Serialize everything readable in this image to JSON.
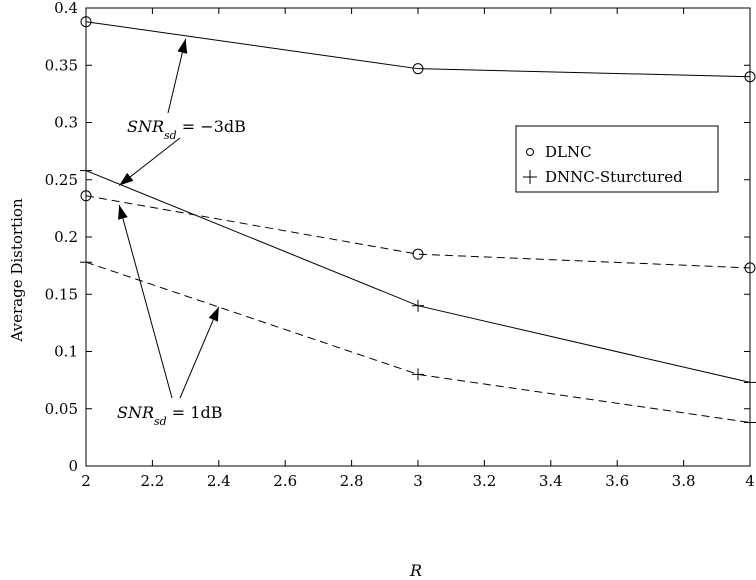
{
  "chart_data": {
    "type": "line",
    "title": "",
    "xlabel": "R",
    "ylabel": "Average Distortion",
    "xlim": [
      2,
      4
    ],
    "ylim": [
      0,
      0.4
    ],
    "x_ticks": [
      "2",
      "2.2",
      "2.4",
      "2.6",
      "2.8",
      "3",
      "3.2",
      "3.4",
      "3.6",
      "3.8",
      "4"
    ],
    "y_ticks": [
      "0",
      "0.05",
      "0.1",
      "0.15",
      "0.2",
      "0.25",
      "0.3",
      "0.35",
      "0.4"
    ],
    "grid": false,
    "legend": {
      "placement": "right",
      "entries": [
        {
          "marker": "o",
          "label": "DLNC"
        },
        {
          "marker": "+",
          "label": "DNNC-Sturctured"
        }
      ]
    },
    "series": [
      {
        "method": "DLNC",
        "snr": "-3dB",
        "marker": "o",
        "line": "solid",
        "x": [
          2,
          3,
          4
        ],
        "y": [
          0.388,
          0.347,
          0.34
        ]
      },
      {
        "method": "DLNC",
        "snr": "1dB",
        "marker": "o",
        "line": "dashed",
        "x": [
          2,
          3,
          4
        ],
        "y": [
          0.236,
          0.185,
          0.173
        ]
      },
      {
        "method": "DNNC-Sturctured",
        "snr": "-3dB",
        "marker": "+",
        "line": "solid",
        "x": [
          2,
          3,
          4
        ],
        "y": [
          0.258,
          0.14,
          0.073
        ]
      },
      {
        "method": "DNNC-Sturctured",
        "snr": "1dB",
        "marker": "+",
        "line": "dashed",
        "x": [
          2,
          3,
          4
        ],
        "y": [
          0.178,
          0.08,
          0.038
        ]
      }
    ],
    "annotations": [
      {
        "id": "snr_m3",
        "prefix": "SNR",
        "sub": "sd",
        "eq": " = −3dB"
      },
      {
        "id": "snr_1",
        "prefix": "SNR",
        "sub": "sd",
        "eq": " = 1dB"
      }
    ]
  }
}
